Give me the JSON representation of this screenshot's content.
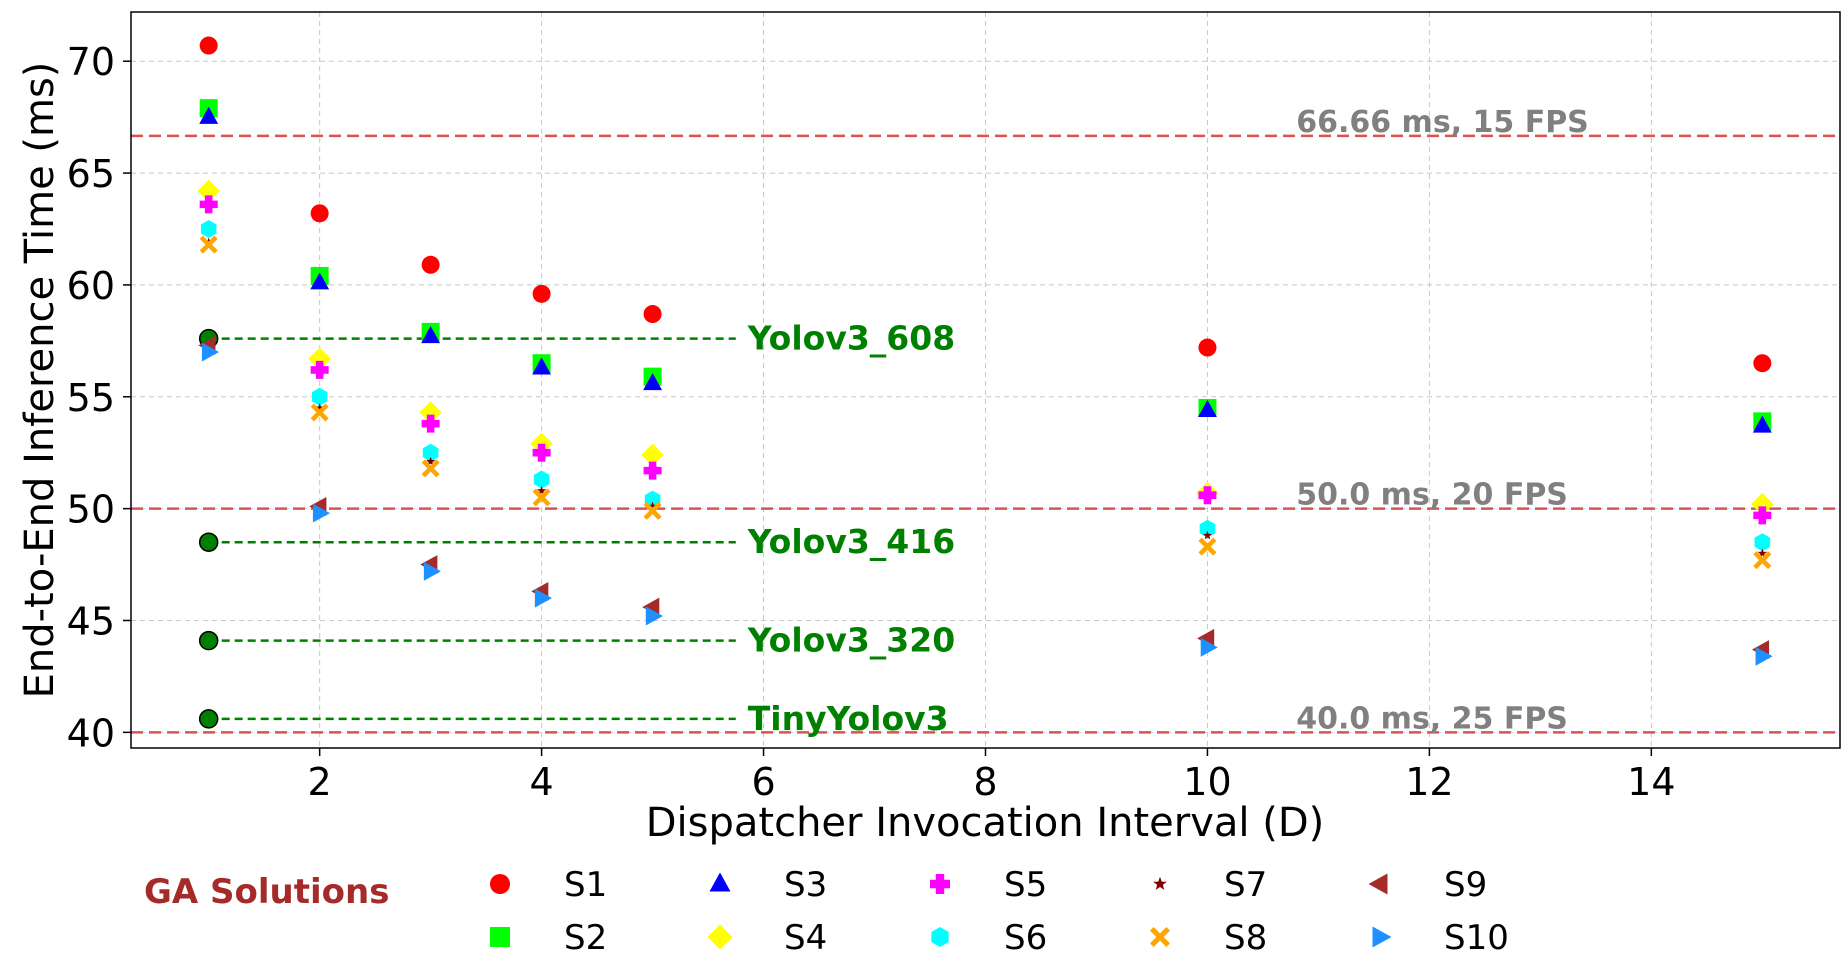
{
  "chart_data": {
    "type": "scatter",
    "xlabel": "Dispatcher Invocation Interval (D)",
    "ylabel": "End-to-End Inference Time (ms)",
    "xlim": [
      0.3,
      15.7
    ],
    "ylim": [
      39.3,
      72.2
    ],
    "x_ticks": [
      2,
      4,
      6,
      8,
      10,
      12,
      14
    ],
    "y_ticks": [
      40,
      45,
      50,
      55,
      60,
      65,
      70
    ],
    "grid": true,
    "x": [
      1,
      2,
      3,
      4,
      5,
      10,
      15
    ],
    "series": [
      {
        "name": "S1",
        "marker": "circle",
        "color": "#ff0000",
        "values": [
          70.7,
          63.2,
          60.9,
          59.6,
          58.7,
          57.2,
          56.5
        ]
      },
      {
        "name": "S2",
        "marker": "square",
        "color": "#00ff00",
        "values": [
          67.9,
          60.4,
          57.9,
          56.5,
          55.9,
          54.5,
          53.9
        ]
      },
      {
        "name": "S3",
        "marker": "triangle-up",
        "color": "#0000ff",
        "values": [
          67.5,
          60.1,
          57.7,
          56.3,
          55.6,
          54.4,
          53.7
        ]
      },
      {
        "name": "S4",
        "marker": "diamond",
        "color": "#ffff00",
        "values": [
          64.2,
          56.7,
          54.3,
          52.9,
          52.4,
          50.7,
          50.2
        ]
      },
      {
        "name": "S5",
        "marker": "plus",
        "color": "#ff00ff",
        "values": [
          63.6,
          56.2,
          53.8,
          52.5,
          51.7,
          50.6,
          49.7
        ]
      },
      {
        "name": "S6",
        "marker": "hexagon",
        "color": "#00ffff",
        "values": [
          62.5,
          55.0,
          52.5,
          51.3,
          50.4,
          49.1,
          48.5
        ]
      },
      {
        "name": "S7",
        "marker": "star",
        "color": "#800000",
        "values": [
          61.9,
          54.5,
          52.1,
          50.8,
          50.1,
          48.8,
          48.0
        ]
      },
      {
        "name": "S8",
        "marker": "x",
        "color": "#ffa500",
        "values": [
          61.8,
          54.3,
          51.8,
          50.5,
          49.9,
          48.3,
          47.7
        ]
      },
      {
        "name": "S9",
        "marker": "triangle-left",
        "color": "#a52a2a",
        "values": [
          57.3,
          50.1,
          47.5,
          46.3,
          45.6,
          44.2,
          43.7
        ]
      },
      {
        "name": "S10",
        "marker": "triangle-right",
        "color": "#1e90ff",
        "values": [
          57.0,
          49.8,
          47.2,
          46.0,
          45.2,
          43.8,
          43.4
        ]
      }
    ],
    "reference_lines": [
      {
        "value": 66.66,
        "label": "66.66 ms, 15 FPS",
        "color": "#d9534f"
      },
      {
        "value": 50.0,
        "label": "50.0 ms, 20 FPS",
        "color": "#d9534f"
      },
      {
        "value": 40.0,
        "label": "40.0 ms, 25 FPS",
        "color": "#d9534f"
      }
    ],
    "baselines": [
      {
        "label": "Yolov3_608",
        "x": 1,
        "value": 57.6
      },
      {
        "label": "Yolov3_416",
        "x": 1,
        "value": 48.5
      },
      {
        "label": "Yolov3_320",
        "x": 1,
        "value": 44.1
      },
      {
        "label": "TinyYolov3",
        "x": 1,
        "value": 40.6
      }
    ],
    "baseline_end_x": 5.75,
    "baseline_color": "#008000",
    "legend_title": "GA Solutions"
  }
}
